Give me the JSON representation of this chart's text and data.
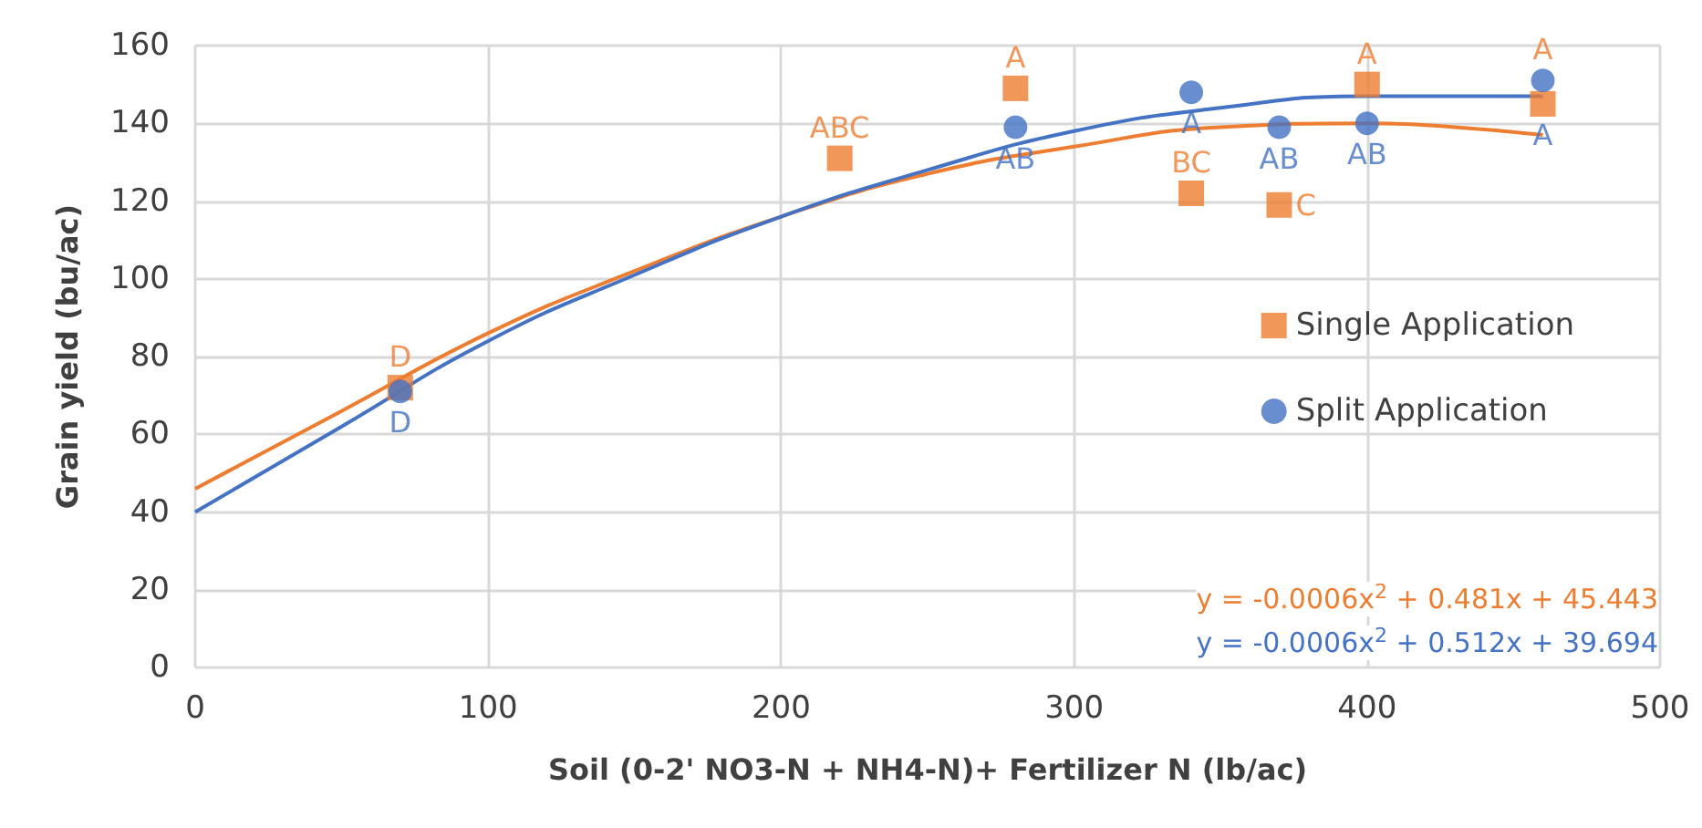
{
  "chart_data": {
    "type": "scatter",
    "xlabel": "Soil (0-2' NO3-N + NH4-N)+ Fertilizer N (lb/ac)",
    "ylabel": "Grain yield (bu/ac)",
    "xlim": [
      0,
      500
    ],
    "xticks": [
      0,
      100,
      200,
      300,
      400,
      500
    ],
    "ylim": [
      0,
      160
    ],
    "yticks": [
      0,
      20,
      40,
      60,
      80,
      100,
      120,
      140,
      160
    ],
    "grid": true,
    "legend": "right",
    "series": [
      {
        "name": "Single Application",
        "marker": "square",
        "color": "#ed7d31",
        "x": [
          70,
          220,
          280,
          340,
          370,
          400,
          460
        ],
        "values": [
          72,
          131,
          149,
          122,
          119,
          150,
          145
        ]
      },
      {
        "name": "Split Application",
        "marker": "circle",
        "color": "#4472c4",
        "x": [
          70,
          280,
          340,
          370,
          400,
          460
        ],
        "values": [
          71,
          139,
          148,
          139,
          140,
          151
        ]
      },
      {
        "type": "line",
        "marker": "none",
        "color": "#ed7d31",
        "x": [
          0,
          50,
          100,
          150,
          200,
          250,
          300,
          350,
          400,
          430,
          460
        ],
        "values": [
          46,
          66,
          86,
          102,
          116,
          127,
          134,
          139,
          140,
          139,
          137
        ]
      },
      {
        "type": "line",
        "marker": "none",
        "color": "#4472c4",
        "x": [
          0,
          50,
          100,
          150,
          200,
          250,
          300,
          350,
          400,
          460
        ],
        "values": [
          40,
          62,
          84,
          101,
          116,
          128,
          138,
          144,
          147,
          147
        ]
      }
    ],
    "annotations": [
      {
        "text": "D",
        "x": 70,
        "y": 72
      },
      {
        "text": "ABC",
        "x": 220,
        "y": 131
      },
      {
        "text": "A",
        "x": 280,
        "y": 149
      },
      {
        "text": "BC",
        "x": 340,
        "y": 122
      },
      {
        "text": "C",
        "x": 370,
        "y": 119
      },
      {
        "text": "A",
        "x": 400,
        "y": 150
      },
      {
        "text": "A",
        "x": 460,
        "y": 145
      },
      {
        "text": "D",
        "x": 70,
        "y": 71
      },
      {
        "text": "AB",
        "x": 280,
        "y": 139
      },
      {
        "text": "A",
        "x": 340,
        "y": 148
      },
      {
        "text": "AB",
        "x": 370,
        "y": 139
      },
      {
        "text": "AB",
        "x": 400,
        "y": 140
      },
      {
        "text": "A",
        "x": 460,
        "y": 151
      },
      "y = -0.0006x$^{2}$ + 0.481x + 45.443",
      "y = -0.0006x$^{2}$ + 0.512x + 39.694"
    ]
  }
}
